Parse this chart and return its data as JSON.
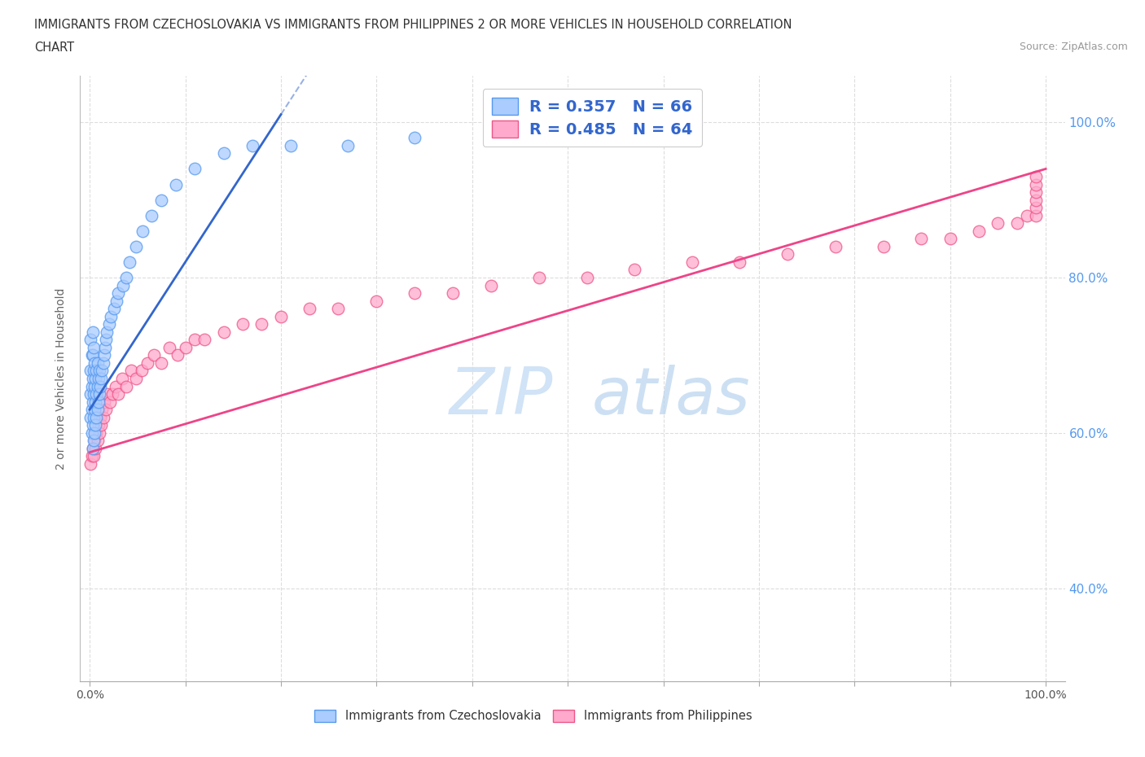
{
  "title_line1": "IMMIGRANTS FROM CZECHOSLOVAKIA VS IMMIGRANTS FROM PHILIPPINES 2 OR MORE VEHICLES IN HOUSEHOLD CORRELATION",
  "title_line2": "CHART",
  "source_text": "Source: ZipAtlas.com",
  "ylabel": "2 or more Vehicles in Household",
  "xticklabels": [
    "0.0%",
    "",
    "",
    "",
    "",
    "",
    "",
    "",
    "",
    "",
    "100.0%"
  ],
  "x_tick_positions": [
    0.0,
    0.1,
    0.2,
    0.3,
    0.4,
    0.5,
    0.6,
    0.7,
    0.8,
    0.9,
    1.0
  ],
  "xlim": [
    -0.01,
    1.02
  ],
  "ylim": [
    0.28,
    1.06
  ],
  "ytick_positions": [
    0.4,
    0.6,
    0.8,
    1.0
  ],
  "R_czech": 0.357,
  "N_czech": 66,
  "R_phil": 0.485,
  "N_phil": 64,
  "color_czech_fill": "#aaccff",
  "color_czech_edge": "#5599ee",
  "color_phil_fill": "#ffaacc",
  "color_phil_edge": "#ee5588",
  "color_czech_line": "#3366cc",
  "color_phil_line": "#ee4488",
  "legend_text_color": "#3366cc",
  "watermark_color": "#cce0f5",
  "background_color": "#ffffff",
  "grid_color": "#dddddd",
  "right_tick_color": "#5599ee",
  "bottom_label_color": "#333333",
  "czech_x": [
    0.001,
    0.001,
    0.001,
    0.001,
    0.002,
    0.002,
    0.002,
    0.002,
    0.003,
    0.003,
    0.003,
    0.003,
    0.003,
    0.003,
    0.004,
    0.004,
    0.004,
    0.004,
    0.004,
    0.005,
    0.005,
    0.005,
    0.005,
    0.006,
    0.006,
    0.006,
    0.007,
    0.007,
    0.007,
    0.008,
    0.008,
    0.008,
    0.009,
    0.009,
    0.01,
    0.01,
    0.011,
    0.012,
    0.013,
    0.014,
    0.015,
    0.016,
    0.017,
    0.018,
    0.02,
    0.022,
    0.025,
    0.028,
    0.03,
    0.035,
    0.038,
    0.042,
    0.048,
    0.055,
    0.065,
    0.075,
    0.09,
    0.11,
    0.14,
    0.17,
    0.21,
    0.27,
    0.34,
    0.42,
    0.52,
    0.63
  ],
  "czech_y": [
    0.62,
    0.65,
    0.68,
    0.72,
    0.6,
    0.63,
    0.66,
    0.7,
    0.58,
    0.61,
    0.64,
    0.67,
    0.7,
    0.73,
    0.59,
    0.62,
    0.65,
    0.68,
    0.71,
    0.6,
    0.63,
    0.66,
    0.69,
    0.61,
    0.64,
    0.67,
    0.62,
    0.65,
    0.68,
    0.63,
    0.66,
    0.69,
    0.64,
    0.67,
    0.65,
    0.68,
    0.66,
    0.67,
    0.68,
    0.69,
    0.7,
    0.71,
    0.72,
    0.73,
    0.74,
    0.75,
    0.76,
    0.77,
    0.78,
    0.79,
    0.8,
    0.82,
    0.84,
    0.86,
    0.88,
    0.9,
    0.92,
    0.94,
    0.96,
    0.97,
    0.97,
    0.97,
    0.98,
    0.98,
    0.99,
    0.99
  ],
  "phil_x": [
    0.001,
    0.002,
    0.003,
    0.004,
    0.005,
    0.006,
    0.007,
    0.008,
    0.009,
    0.01,
    0.011,
    0.012,
    0.013,
    0.014,
    0.015,
    0.017,
    0.019,
    0.021,
    0.024,
    0.027,
    0.03,
    0.034,
    0.038,
    0.043,
    0.048,
    0.054,
    0.06,
    0.067,
    0.075,
    0.083,
    0.092,
    0.1,
    0.11,
    0.12,
    0.14,
    0.16,
    0.18,
    0.2,
    0.23,
    0.26,
    0.3,
    0.34,
    0.38,
    0.42,
    0.47,
    0.52,
    0.57,
    0.63,
    0.68,
    0.73,
    0.78,
    0.83,
    0.87,
    0.9,
    0.93,
    0.95,
    0.97,
    0.98,
    0.99,
    0.99,
    0.99,
    0.99,
    0.99,
    0.99
  ],
  "phil_y": [
    0.56,
    0.57,
    0.58,
    0.57,
    0.59,
    0.58,
    0.6,
    0.59,
    0.61,
    0.6,
    0.62,
    0.61,
    0.63,
    0.62,
    0.64,
    0.63,
    0.65,
    0.64,
    0.65,
    0.66,
    0.65,
    0.67,
    0.66,
    0.68,
    0.67,
    0.68,
    0.69,
    0.7,
    0.69,
    0.71,
    0.7,
    0.71,
    0.72,
    0.72,
    0.73,
    0.74,
    0.74,
    0.75,
    0.76,
    0.76,
    0.77,
    0.78,
    0.78,
    0.79,
    0.8,
    0.8,
    0.81,
    0.82,
    0.82,
    0.83,
    0.84,
    0.84,
    0.85,
    0.85,
    0.86,
    0.87,
    0.87,
    0.88,
    0.88,
    0.89,
    0.9,
    0.91,
    0.92,
    0.93
  ],
  "czech_line_x0": 0.0,
  "czech_line_y0": 0.63,
  "czech_line_x1": 0.2,
  "czech_line_y1": 1.01,
  "phil_line_x0": 0.0,
  "phil_line_y0": 0.575,
  "phil_line_x1": 1.0,
  "phil_line_y1": 0.94
}
